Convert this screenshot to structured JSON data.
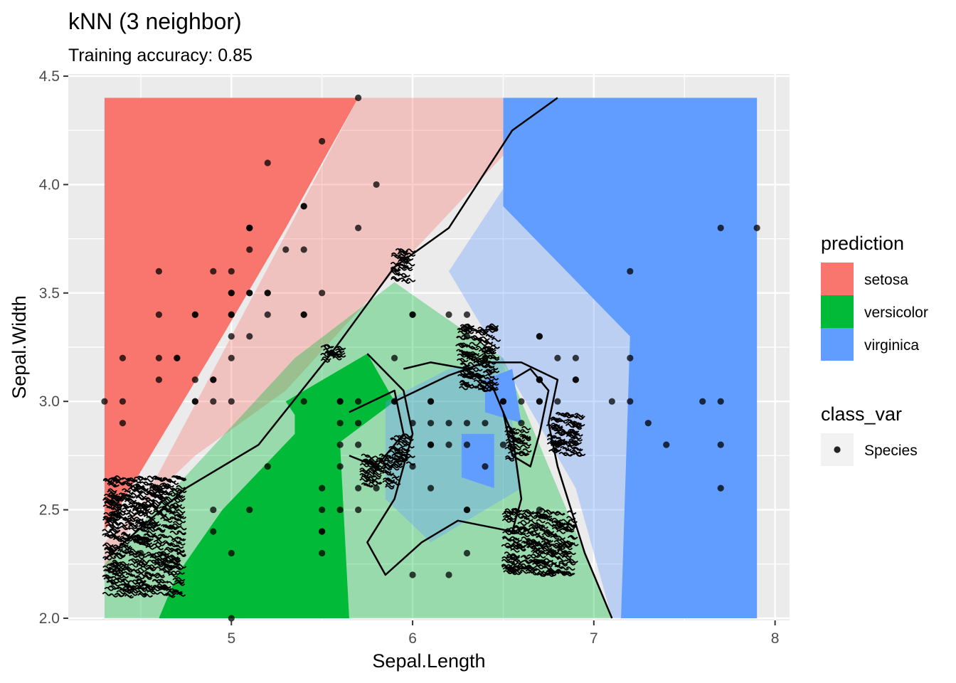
{
  "chart_data": {
    "type": "scatter",
    "title": "kNN (3 neighbor)",
    "subtitle": "Training accuracy: 0.85",
    "xlabel": "Sepal.Length",
    "ylabel": "Sepal.Width",
    "xlim": [
      4.1,
      8.08
    ],
    "ylim": [
      1.99,
      4.51
    ],
    "x_ticks": [
      5,
      6,
      7,
      8
    ],
    "x_tick_labels": [
      "5",
      "6",
      "7",
      "8"
    ],
    "y_ticks": [
      2.0,
      2.5,
      3.0,
      3.5,
      4.0,
      4.5
    ],
    "y_tick_labels": [
      "2.0",
      "2.5",
      "3.0",
      "3.5",
      "4.0",
      "4.5"
    ],
    "grid": true,
    "legend_placement": "right",
    "prediction_legend": {
      "title": "prediction",
      "entries": [
        {
          "label": "setosa",
          "color": "#F8766D"
        },
        {
          "label": "versicolor",
          "color": "#00BA38"
        },
        {
          "label": "virginica",
          "color": "#619CFF"
        }
      ]
    },
    "class_legend": {
      "title": "class_var",
      "entries": [
        {
          "label": "Species",
          "color": "#222222"
        }
      ]
    },
    "regions": [
      {
        "class": "setosa",
        "opacity": 1.0,
        "points": [
          [
            4.3,
            4.4
          ],
          [
            5.7,
            4.4
          ],
          [
            5.3,
            3.8
          ],
          [
            4.95,
            3.3
          ],
          [
            4.3,
            2.4
          ]
        ]
      },
      {
        "class": "setosa",
        "opacity": 0.35,
        "points": [
          [
            5.7,
            4.4
          ],
          [
            6.8,
            4.4
          ],
          [
            5.9,
            3.6
          ],
          [
            5.3,
            3.05
          ],
          [
            4.8,
            2.75
          ],
          [
            4.3,
            2.35
          ],
          [
            4.3,
            2.2
          ]
        ]
      },
      {
        "class": "versicolor",
        "opacity": 0.35,
        "points": [
          [
            4.3,
            2.0
          ],
          [
            7.1,
            2.0
          ],
          [
            6.5,
            3.2
          ],
          [
            5.9,
            3.55
          ],
          [
            5.35,
            3.2
          ],
          [
            4.3,
            2.25
          ]
        ]
      },
      {
        "class": "versicolor",
        "opacity": 1.0,
        "points": [
          [
            4.6,
            2.0
          ],
          [
            5.65,
            2.0
          ],
          [
            5.6,
            2.8
          ],
          [
            5.35,
            3.0
          ],
          [
            5.35,
            2.85
          ],
          [
            4.95,
            2.5
          ],
          [
            4.7,
            2.2
          ]
        ]
      },
      {
        "class": "versicolor",
        "opacity": 1.0,
        "points": [
          [
            5.3,
            3.0
          ],
          [
            5.75,
            3.22
          ],
          [
            5.9,
            3.0
          ],
          [
            5.5,
            2.75
          ]
        ]
      },
      {
        "class": "virginica",
        "opacity": 0.35,
        "points": [
          [
            6.83,
            4.4
          ],
          [
            7.9,
            4.4
          ],
          [
            7.9,
            2.0
          ],
          [
            7.1,
            2.0
          ],
          [
            6.9,
            2.6
          ],
          [
            6.45,
            3.25
          ],
          [
            6.2,
            3.6
          ]
        ]
      },
      {
        "class": "virginica",
        "opacity": 1.0,
        "points": [
          [
            7.05,
            4.4
          ],
          [
            7.9,
            4.4
          ],
          [
            7.9,
            2.0
          ],
          [
            7.15,
            2.0
          ],
          [
            7.2,
            3.3
          ],
          [
            6.5,
            3.9
          ],
          [
            6.5,
            4.4
          ]
        ]
      },
      {
        "class": "virginica",
        "opacity": 0.35,
        "points": [
          [
            5.85,
            3.0
          ],
          [
            6.2,
            3.15
          ],
          [
            6.5,
            3.2
          ],
          [
            6.6,
            2.6
          ],
          [
            6.1,
            2.35
          ],
          [
            5.85,
            2.55
          ]
        ]
      },
      {
        "class": "virginica",
        "opacity": 1.0,
        "points": [
          [
            6.27,
            2.85
          ],
          [
            6.45,
            2.85
          ],
          [
            6.45,
            2.6
          ],
          [
            6.27,
            2.65
          ]
        ]
      },
      {
        "class": "virginica",
        "opacity": 1.0,
        "points": [
          [
            6.4,
            3.1
          ],
          [
            6.55,
            3.15
          ],
          [
            6.6,
            2.9
          ],
          [
            6.4,
            2.95
          ]
        ]
      }
    ],
    "boundaries": [
      [
        [
          4.3,
          2.27
        ],
        [
          4.75,
          2.6
        ],
        [
          5.15,
          2.8
        ],
        [
          5.55,
          3.22
        ],
        [
          5.9,
          3.62
        ],
        [
          6.2,
          3.8
        ],
        [
          6.55,
          4.25
        ],
        [
          6.8,
          4.4
        ]
      ],
      [
        [
          5.9,
          3.0
        ],
        [
          6.2,
          3.12
        ],
        [
          6.4,
          3.18
        ],
        [
          6.6,
          3.18
        ],
        [
          6.8,
          3.1
        ],
        [
          6.75,
          2.9
        ],
        [
          6.8,
          2.7
        ],
        [
          6.95,
          2.3
        ],
        [
          7.1,
          2.0
        ]
      ],
      [
        [
          5.75,
          3.22
        ],
        [
          5.95,
          3.05
        ],
        [
          6.0,
          2.85
        ],
        [
          5.9,
          2.55
        ],
        [
          5.75,
          2.35
        ],
        [
          5.85,
          2.2
        ],
        [
          6.05,
          2.35
        ],
        [
          6.25,
          2.45
        ],
        [
          6.55,
          2.4
        ],
        [
          6.6,
          2.55
        ],
        [
          6.55,
          2.85
        ],
        [
          6.45,
          3.05
        ],
        [
          6.3,
          3.15
        ],
        [
          6.1,
          3.18
        ],
        [
          5.95,
          3.15
        ]
      ],
      [
        [
          6.55,
          3.1
        ],
        [
          6.65,
          3.15
        ],
        [
          6.75,
          3.05
        ],
        [
          6.7,
          2.85
        ],
        [
          6.65,
          2.7
        ],
        [
          6.55,
          2.75
        ],
        [
          6.5,
          2.95
        ]
      ],
      [
        [
          5.65,
          2.95
        ],
        [
          5.9,
          3.05
        ],
        [
          5.95,
          2.85
        ],
        [
          5.8,
          2.7
        ],
        [
          5.65,
          2.75
        ]
      ]
    ],
    "dense_clusters": [
      [
        4.3,
        2.1,
        4.72,
        2.65
      ],
      [
        5.88,
        3.55,
        5.98,
        3.7
      ],
      [
        6.25,
        3.05,
        6.45,
        3.35
      ],
      [
        5.72,
        2.6,
        5.9,
        2.75
      ],
      [
        6.5,
        2.2,
        6.88,
        2.5
      ],
      [
        6.75,
        2.75,
        6.92,
        2.95
      ],
      [
        5.88,
        2.7,
        5.98,
        2.85
      ],
      [
        5.5,
        3.18,
        5.6,
        3.26
      ],
      [
        6.52,
        2.73,
        6.62,
        2.88
      ]
    ],
    "points": [
      [
        5.7,
        4.4
      ],
      [
        5.5,
        4.2
      ],
      [
        5.2,
        4.1
      ],
      [
        5.8,
        4.0
      ],
      [
        5.4,
        3.9
      ],
      [
        5.4,
        3.9
      ],
      [
        5.1,
        3.8
      ],
      [
        5.1,
        3.8
      ],
      [
        5.7,
        3.8
      ],
      [
        5.1,
        3.8
      ],
      [
        5.1,
        3.7
      ],
      [
        5.4,
        3.7
      ],
      [
        5.3,
        3.7
      ],
      [
        4.6,
        3.6
      ],
      [
        5.0,
        3.6
      ],
      [
        4.9,
        3.6
      ],
      [
        5.0,
        3.5
      ],
      [
        5.1,
        3.5
      ],
      [
        5.5,
        3.5
      ],
      [
        5.2,
        3.5
      ],
      [
        5.0,
        3.5
      ],
      [
        5.1,
        3.5
      ],
      [
        5.4,
        3.4
      ],
      [
        5.0,
        3.4
      ],
      [
        4.8,
        3.4
      ],
      [
        5.2,
        3.4
      ],
      [
        4.6,
        3.4
      ],
      [
        5.4,
        3.4
      ],
      [
        5.0,
        3.4
      ],
      [
        4.8,
        3.4
      ],
      [
        5.0,
        3.3
      ],
      [
        5.1,
        3.3
      ],
      [
        4.4,
        3.2
      ],
      [
        4.6,
        3.2
      ],
      [
        4.7,
        3.2
      ],
      [
        4.7,
        3.2
      ],
      [
        5.0,
        3.2
      ],
      [
        4.6,
        3.1
      ],
      [
        4.9,
        3.1
      ],
      [
        4.8,
        3.1
      ],
      [
        4.9,
        3.1
      ],
      [
        4.3,
        3.0
      ],
      [
        4.4,
        3.0
      ],
      [
        4.8,
        3.0
      ],
      [
        4.9,
        3.0
      ],
      [
        4.8,
        3.0
      ],
      [
        5.0,
        3.0
      ],
      [
        4.4,
        2.9
      ],
      [
        4.5,
        2.3
      ],
      [
        6.3,
        3.3
      ],
      [
        6.0,
        3.4
      ],
      [
        6.7,
        3.1
      ],
      [
        6.9,
        3.1
      ],
      [
        6.5,
        2.8
      ],
      [
        6.3,
        2.5
      ],
      [
        6.6,
        2.9
      ],
      [
        5.2,
        2.7
      ],
      [
        5.0,
        2.0
      ],
      [
        5.9,
        3.0
      ],
      [
        6.0,
        2.2
      ],
      [
        6.1,
        2.9
      ],
      [
        5.6,
        2.9
      ],
      [
        6.7,
        3.1
      ],
      [
        5.6,
        3.0
      ],
      [
        5.8,
        2.7
      ],
      [
        6.2,
        2.2
      ],
      [
        5.6,
        2.5
      ],
      [
        5.9,
        3.2
      ],
      [
        6.1,
        2.8
      ],
      [
        6.3,
        2.5
      ],
      [
        6.1,
        2.8
      ],
      [
        6.4,
        2.9
      ],
      [
        6.6,
        3.0
      ],
      [
        6.8,
        2.8
      ],
      [
        6.7,
        3.0
      ],
      [
        6.0,
        2.9
      ],
      [
        5.7,
        2.6
      ],
      [
        5.5,
        2.4
      ],
      [
        5.5,
        2.4
      ],
      [
        5.8,
        2.7
      ],
      [
        6.0,
        2.7
      ],
      [
        5.4,
        3.0
      ],
      [
        6.0,
        3.4
      ],
      [
        6.7,
        3.1
      ],
      [
        6.3,
        2.3
      ],
      [
        5.6,
        3.0
      ],
      [
        5.5,
        2.5
      ],
      [
        5.5,
        2.6
      ],
      [
        6.1,
        3.0
      ],
      [
        5.8,
        2.6
      ],
      [
        5.0,
        2.3
      ],
      [
        5.6,
        2.7
      ],
      [
        5.7,
        3.0
      ],
      [
        5.7,
        2.9
      ],
      [
        6.2,
        2.9
      ],
      [
        5.1,
        2.5
      ],
      [
        5.7,
        2.8
      ],
      [
        6.4,
        3.2
      ],
      [
        6.5,
        3.0
      ],
      [
        5.8,
        2.7
      ],
      [
        7.1,
        3.0
      ],
      [
        6.3,
        2.9
      ],
      [
        6.5,
        3.0
      ],
      [
        7.6,
        3.0
      ],
      [
        4.9,
        2.5
      ],
      [
        7.3,
        2.9
      ],
      [
        6.7,
        2.5
      ],
      [
        7.2,
        3.6
      ],
      [
        6.4,
        2.7
      ],
      [
        6.8,
        3.0
      ],
      [
        5.7,
        2.5
      ],
      [
        6.4,
        3.2
      ],
      [
        7.7,
        3.8
      ],
      [
        7.7,
        2.6
      ],
      [
        6.9,
        3.2
      ],
      [
        5.6,
        2.8
      ],
      [
        7.7,
        2.8
      ],
      [
        6.7,
        3.3
      ],
      [
        7.2,
        3.2
      ],
      [
        6.2,
        2.8
      ],
      [
        6.1,
        3.0
      ],
      [
        7.2,
        3.0
      ],
      [
        7.4,
        2.8
      ],
      [
        7.9,
        3.8
      ],
      [
        6.3,
        2.8
      ],
      [
        6.1,
        2.6
      ],
      [
        7.7,
        3.0
      ],
      [
        6.3,
        3.4
      ],
      [
        6.9,
        3.1
      ],
      [
        6.7,
        3.1
      ],
      [
        5.8,
        2.7
      ],
      [
        6.8,
        3.2
      ],
      [
        6.7,
        3.3
      ],
      [
        6.7,
        3.0
      ],
      [
        6.2,
        3.4
      ],
      [
        5.9,
        3.0
      ],
      [
        4.9,
        2.4
      ],
      [
        5.5,
        2.3
      ],
      [
        5.2,
        3.5
      ]
    ]
  }
}
